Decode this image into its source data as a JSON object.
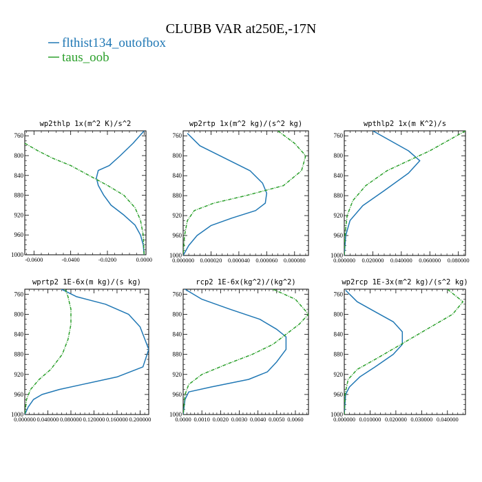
{
  "title": "CLUBB VAR at250E,-17N",
  "legend": [
    {
      "name": "flthist134_outofbox",
      "color": "#1f77b4"
    },
    {
      "name": "taus_oob",
      "color": "#2ca02c"
    }
  ],
  "chart_data": [
    {
      "type": "line",
      "title": "wp2thlp  1x(m^2 K)/s^2",
      "xlim": [
        -0.065,
        0.001
      ],
      "ylim": [
        1000,
        750
      ],
      "xticks": [
        -0.06,
        -0.04,
        -0.02,
        0.0
      ],
      "xticklabels": [
        "-0.0600",
        "-0.0400",
        "-0.0200",
        "0.0000"
      ],
      "yticks": [
        760,
        800,
        840,
        880,
        920,
        960,
        1000
      ],
      "series": [
        {
          "name": "flthist134_outofbox",
          "color": "#1f77b4",
          "style": "solid",
          "x": [
            0.0,
            -0.006,
            -0.013,
            -0.019,
            -0.025,
            -0.026,
            -0.025,
            -0.022,
            -0.018,
            -0.011,
            -0.005,
            -0.002,
            -0.0005,
            0.0
          ],
          "y": [
            750,
            775,
            800,
            820,
            830,
            845,
            860,
            880,
            900,
            920,
            940,
            960,
            980,
            1000
          ]
        },
        {
          "name": "taus_oob",
          "color": "#2ca02c",
          "style": "dashdot",
          "x": [
            -0.065,
            -0.058,
            -0.05,
            -0.04,
            -0.03,
            -0.02,
            -0.011,
            -0.005,
            -0.002,
            -0.0005,
            0.0
          ],
          "y": [
            775,
            790,
            805,
            820,
            840,
            860,
            880,
            905,
            930,
            960,
            1000
          ]
        }
      ]
    },
    {
      "type": "line",
      "title": "wp2rtp  1x(m^2 kg)/(s^2 kg)",
      "xlim": [
        0,
        9e-05
      ],
      "ylim": [
        1000,
        750
      ],
      "xticks": [
        0,
        2e-05,
        4e-05,
        6e-05,
        8e-05
      ],
      "xticklabels": [
        "0.000000",
        "0.000020",
        "0.000040",
        "0.000060",
        "0.000080"
      ],
      "yticks": [
        760,
        800,
        840,
        880,
        920,
        960,
        1000
      ],
      "series": [
        {
          "name": "flthist134_outofbox",
          "color": "#1f77b4",
          "style": "solid",
          "x": [
            3e-06,
            1.2e-05,
            3e-05,
            4.8e-05,
            5.7e-05,
            6e-05,
            5.9e-05,
            5.2e-05,
            3.5e-05,
            2e-05,
            1e-05,
            4e-06,
            0.0
          ],
          "y": [
            755,
            780,
            805,
            830,
            855,
            875,
            895,
            910,
            925,
            940,
            960,
            980,
            1000
          ]
        },
        {
          "name": "taus_oob",
          "color": "#2ca02c",
          "style": "dashdot",
          "x": [
            6.8e-05,
            8e-05,
            8.8e-05,
            8.5e-05,
            7.2e-05,
            4.5e-05,
            2.2e-05,
            8e-06,
            3e-06,
            1e-06,
            0.0
          ],
          "y": [
            750,
            775,
            800,
            830,
            860,
            880,
            895,
            910,
            930,
            960,
            1000
          ]
        }
      ]
    },
    {
      "type": "line",
      "title": "wpthlp2  1x(m K^2)/s",
      "xlim": [
        0,
        0.085
      ],
      "ylim": [
        1000,
        750
      ],
      "xticks": [
        0.0,
        0.02,
        0.04,
        0.06,
        0.08
      ],
      "xticklabels": [
        "0.000000",
        "0.020000",
        "0.040000",
        "0.060000",
        "0.080000"
      ],
      "yticks": [
        760,
        800,
        840,
        880,
        920,
        960,
        1000
      ],
      "series": [
        {
          "name": "flthist134_outofbox",
          "color": "#1f77b4",
          "style": "solid",
          "x": [
            0.02,
            0.045,
            0.053,
            0.045,
            0.028,
            0.013,
            0.004,
            0.001,
            0.0
          ],
          "y": [
            750,
            790,
            810,
            835,
            870,
            900,
            930,
            960,
            1000
          ]
        },
        {
          "name": "taus_oob",
          "color": "#2ca02c",
          "style": "dashdot",
          "x": [
            0.085,
            0.06,
            0.03,
            0.015,
            0.006,
            0.002,
            0.0005,
            0.0
          ],
          "y": [
            750,
            790,
            830,
            860,
            890,
            920,
            960,
            1000
          ]
        }
      ]
    },
    {
      "type": "line",
      "title": "wprtp2  1E-6x(m kg)/(s kg)",
      "xlim": [
        0,
        0.215
      ],
      "ylim": [
        1000,
        750
      ],
      "xticks": [
        0.0,
        0.04,
        0.08,
        0.12,
        0.16,
        0.2
      ],
      "xticklabels": [
        "0.000000",
        "0.040000",
        "0.080000",
        "0.120000",
        "0.160000",
        "0.200000"
      ],
      "yticks": [
        760,
        800,
        840,
        880,
        920,
        960,
        1000
      ],
      "series": [
        {
          "name": "flthist134_outofbox",
          "color": "#1f77b4",
          "style": "solid",
          "x": [
            0.06,
            0.09,
            0.14,
            0.18,
            0.2,
            0.215,
            0.205,
            0.16,
            0.1,
            0.06,
            0.03,
            0.015,
            0.006,
            0.0
          ],
          "y": [
            748,
            765,
            780,
            800,
            825,
            870,
            905,
            925,
            940,
            950,
            960,
            970,
            985,
            1000
          ]
        },
        {
          "name": "taus_oob",
          "color": "#2ca02c",
          "style": "dashdot",
          "x": [
            0.07,
            0.075,
            0.08,
            0.08,
            0.075,
            0.065,
            0.045,
            0.025,
            0.01,
            0.003,
            0.0
          ],
          "y": [
            750,
            765,
            790,
            820,
            850,
            880,
            910,
            930,
            950,
            970,
            1000
          ]
        }
      ]
    },
    {
      "type": "line",
      "title": "rcp2  1E-6x(kg^2)/(kg^2)",
      "xlim": [
        0,
        0.0067
      ],
      "ylim": [
        1000,
        750
      ],
      "xticks": [
        0.0,
        0.001,
        0.002,
        0.003,
        0.004,
        0.005,
        0.006
      ],
      "xticklabels": [
        "0.0000",
        "0.0010",
        "0.0020",
        "0.0030",
        "0.0040",
        "0.0050",
        "0.0060"
      ],
      "yticks": [
        760,
        800,
        840,
        880,
        920,
        960,
        1000
      ],
      "series": [
        {
          "name": "flthist134_outofbox",
          "color": "#1f77b4",
          "style": "solid",
          "x": [
            0.0001,
            0.001,
            0.0025,
            0.0041,
            0.005,
            0.0055,
            0.0055,
            0.005,
            0.0045,
            0.0035,
            0.0015,
            0.0003,
            0.0001,
            0.0
          ],
          "y": [
            750,
            770,
            790,
            810,
            830,
            845,
            870,
            895,
            915,
            930,
            945,
            955,
            970,
            1000
          ]
        },
        {
          "name": "taus_oob",
          "color": "#2ca02c",
          "style": "dashdot",
          "x": [
            0.0048,
            0.006,
            0.0067,
            0.0062,
            0.0055,
            0.0048,
            0.0037,
            0.0023,
            0.001,
            0.0003,
            0.0001,
            0.0
          ],
          "y": [
            750,
            770,
            800,
            820,
            840,
            860,
            880,
            900,
            920,
            940,
            960,
            1000
          ]
        }
      ]
    },
    {
      "type": "line",
      "title": "wp2rcp  1E-3x(m^2 kg)/(s^2 kg)",
      "xlim": [
        0,
        0.047
      ],
      "ylim": [
        1000,
        750
      ],
      "xticks": [
        0.0,
        0.01,
        0.02,
        0.03,
        0.04
      ],
      "xticklabels": [
        "0.000000",
        "0.010000",
        "0.020000",
        "0.030000",
        "0.040000"
      ],
      "yticks": [
        760,
        800,
        840,
        880,
        920,
        960,
        1000
      ],
      "series": [
        {
          "name": "flthist134_outofbox",
          "color": "#1f77b4",
          "style": "solid",
          "x": [
            0.0005,
            0.005,
            0.012,
            0.019,
            0.0225,
            0.0225,
            0.019,
            0.012,
            0.006,
            0.002,
            0.0005,
            0.0
          ],
          "y": [
            752,
            775,
            795,
            815,
            835,
            860,
            880,
            905,
            925,
            945,
            960,
            1000
          ]
        },
        {
          "name": "taus_oob",
          "color": "#2ca02c",
          "style": "dashdot",
          "x": [
            0.04,
            0.046,
            0.042,
            0.032,
            0.022,
            0.012,
            0.005,
            0.0015,
            0.0003,
            0.0
          ],
          "y": [
            750,
            775,
            800,
            830,
            860,
            890,
            910,
            930,
            960,
            1000
          ]
        }
      ]
    }
  ]
}
